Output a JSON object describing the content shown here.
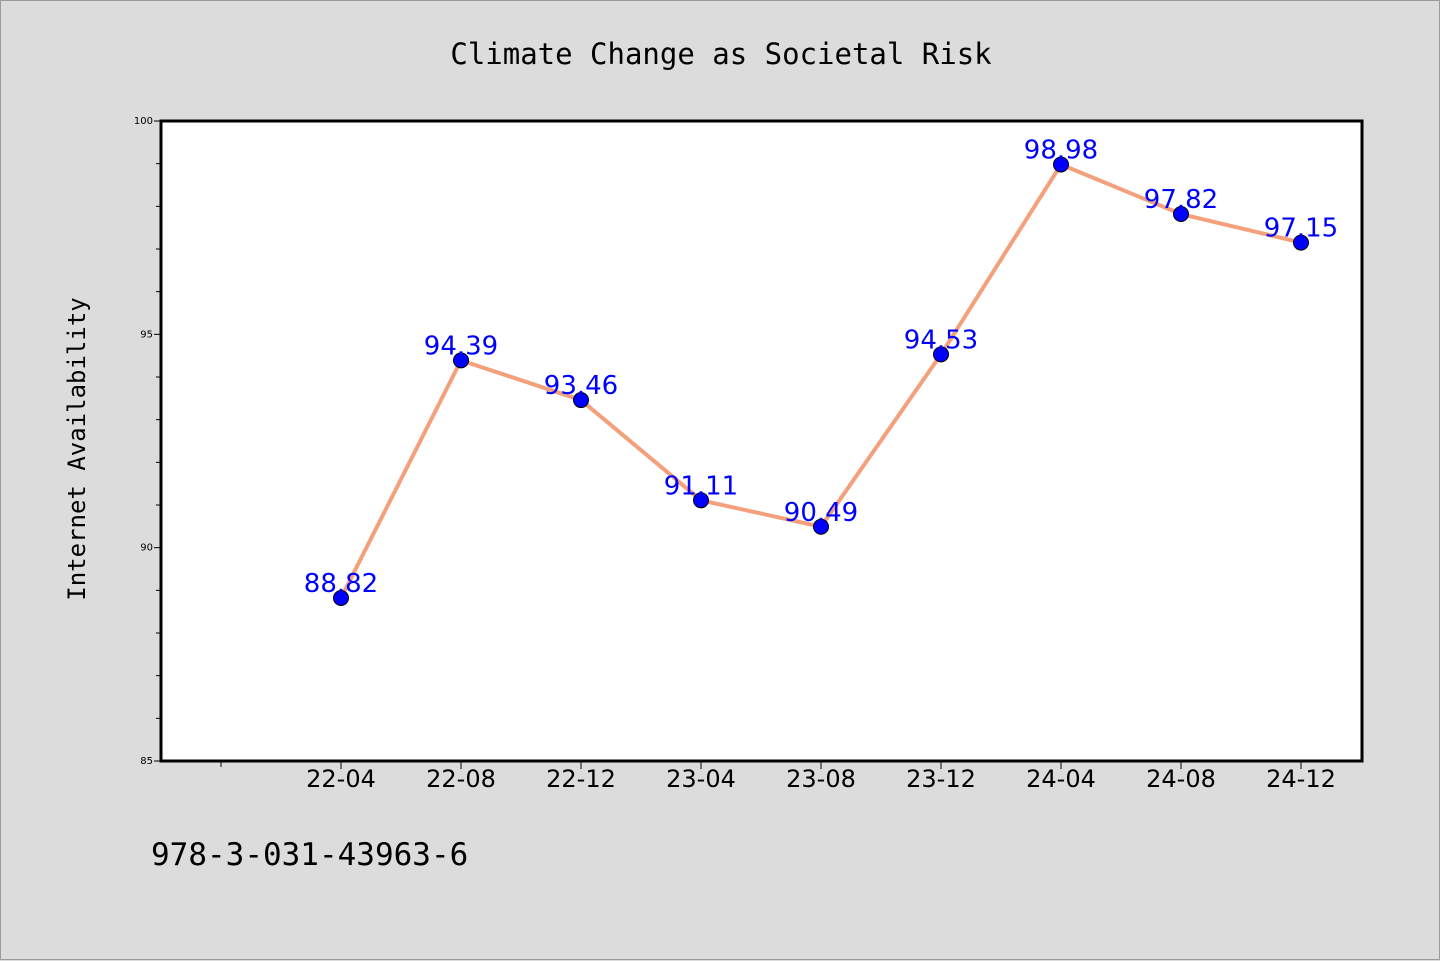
{
  "annotation": {
    "isbn": "978-3-031-43963-6"
  },
  "colors": {
    "line": "#f4a07c",
    "marker": "#0000ff",
    "label": "#0000ff",
    "background": "#dcdcdc",
    "plot_bg": "#ffffff"
  },
  "chart_data": {
    "type": "line",
    "title": "Climate Change as Societal Risk",
    "xlabel": "",
    "ylabel": "Internet Availability",
    "x": [
      "22-04",
      "22-08",
      "22-12",
      "23-04",
      "23-08",
      "23-12",
      "24-04",
      "24-08",
      "24-12"
    ],
    "series": [
      {
        "values": [
          88.82,
          94.39,
          93.46,
          91.11,
          90.49,
          94.53,
          98.98,
          97.82,
          97.15
        ]
      }
    ],
    "ylim": [
      85,
      100
    ],
    "yticks": [
      85,
      90,
      95,
      100
    ],
    "grid": false,
    "data_labels": true
  }
}
